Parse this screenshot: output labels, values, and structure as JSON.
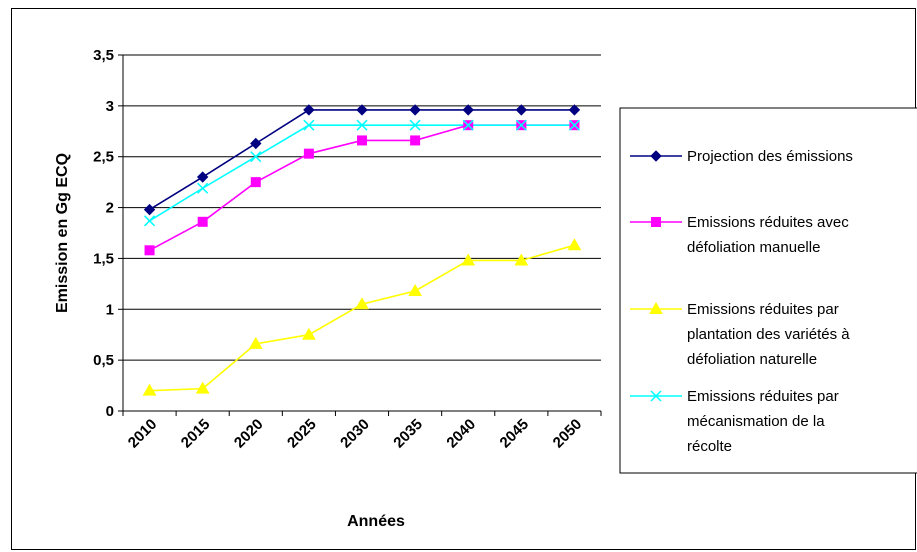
{
  "chart_data": {
    "type": "line",
    "title": "",
    "xlabel": "Années",
    "ylabel": "Emission en Gg ECQ",
    "categories": [
      "2010",
      "2015",
      "2020",
      "2025",
      "2030",
      "2035",
      "2040",
      "2045",
      "2050"
    ],
    "y_ticks": [
      "0",
      "0,5",
      "1",
      "1,5",
      "2",
      "2,5",
      "3",
      "3,5"
    ],
    "ylim": [
      0,
      3.5
    ],
    "grid": "horizontal",
    "legend_position": "right",
    "series": [
      {
        "name": "Projection des émissions",
        "legend_lines": [
          "Projection des émissions"
        ],
        "color": "#000080",
        "marker": "diamond",
        "values": [
          1.98,
          2.3,
          2.63,
          2.96,
          2.96,
          2.96,
          2.96,
          2.96,
          2.96
        ]
      },
      {
        "name": "Emissions réduites avec défoliation manuelle",
        "legend_lines": [
          "Emissions réduites avec",
          "défoliation manuelle"
        ],
        "color": "#FF00FF",
        "marker": "square",
        "values": [
          1.58,
          1.86,
          2.25,
          2.53,
          2.66,
          2.66,
          2.81,
          2.81,
          2.81
        ]
      },
      {
        "name": "Emissions réduites par plantation des variétés à défoliation naturelle",
        "legend_lines": [
          "Emissions réduites par",
          "plantation des variétés à",
          "défoliation naturelle"
        ],
        "color": "#FFFF00",
        "marker": "triangle",
        "values": [
          0.2,
          0.22,
          0.66,
          0.75,
          1.05,
          1.18,
          1.48,
          1.48,
          1.63
        ]
      },
      {
        "name": "Emissions réduites par mécanismation de la récolte",
        "legend_lines": [
          "Emissions réduites par",
          "mécanismation de la",
          "récolte"
        ],
        "color": "#00FFFF",
        "marker": "x",
        "values": [
          1.87,
          2.19,
          2.5,
          2.81,
          2.81,
          2.81,
          2.81,
          2.81,
          2.81
        ]
      }
    ]
  }
}
